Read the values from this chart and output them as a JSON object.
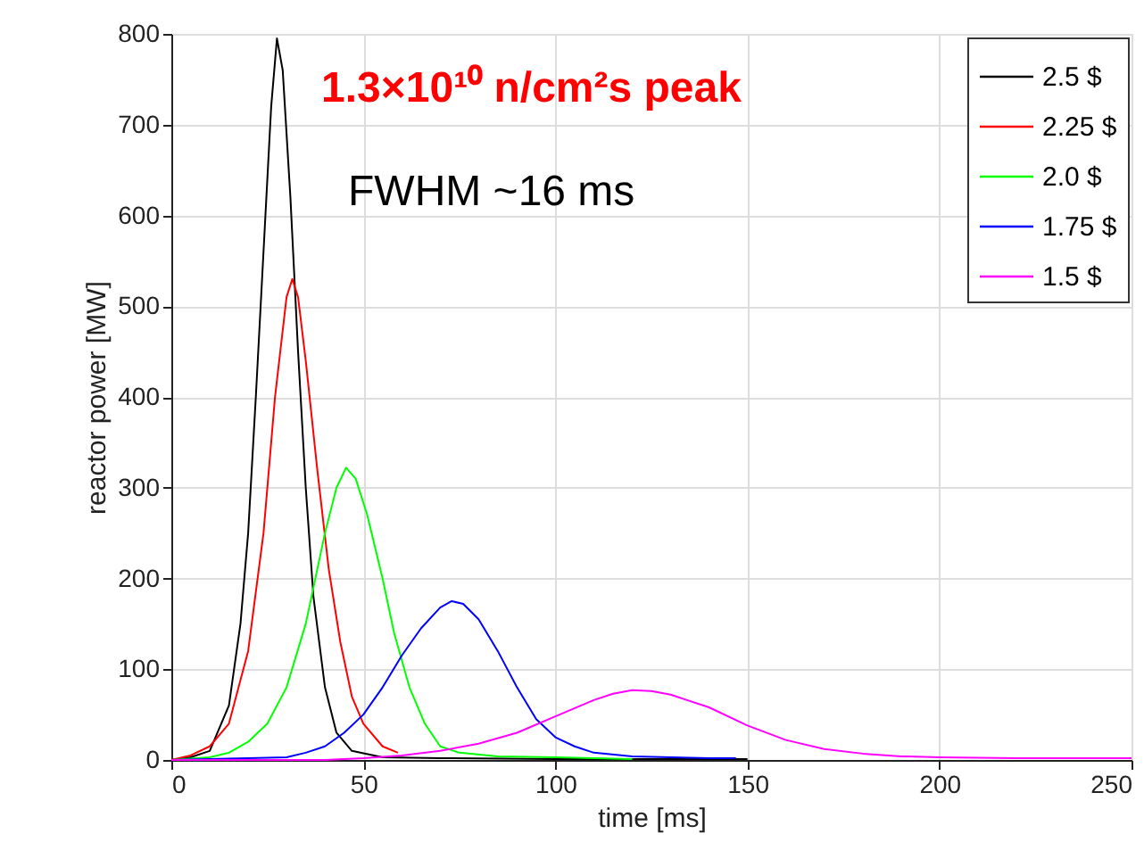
{
  "chart_data": {
    "type": "line",
    "xlabel": "time [ms]",
    "ylabel": "reactor power [MW]",
    "annotations": [
      "1.3×10¹⁰ n/cm²s peak",
      "FWHM ~16 ms"
    ],
    "xlim": [
      0,
      250
    ],
    "ylim": [
      0,
      800
    ],
    "xticks": [
      0,
      50,
      100,
      150,
      200,
      250
    ],
    "yticks": [
      0,
      100,
      200,
      300,
      400,
      500,
      600,
      700,
      800
    ],
    "grid": true,
    "legend": "top right",
    "line_style": "solid",
    "marker": "none",
    "series": [
      {
        "name": "2.5 $",
        "color": "#000000",
        "x": [
          0,
          5,
          10,
          15,
          18,
          20,
          22,
          24,
          26,
          27.5,
          29,
          31,
          33,
          35,
          37,
          40,
          43,
          47,
          55,
          70,
          100,
          150
        ],
        "values": [
          0,
          3,
          10,
          60,
          150,
          250,
          400,
          560,
          720,
          795,
          760,
          620,
          450,
          300,
          180,
          80,
          30,
          10,
          3,
          2,
          1,
          1
        ]
      },
      {
        "name": "2.25 $",
        "color": "#ff0000",
        "x": [
          0,
          5,
          10,
          15,
          20,
          24,
          27,
          30,
          31.5,
          33,
          35,
          38,
          41,
          44,
          47,
          50,
          55,
          59
        ],
        "values": [
          0,
          5,
          15,
          40,
          120,
          250,
          400,
          510,
          530,
          510,
          440,
          320,
          210,
          130,
          70,
          40,
          15,
          8
        ]
      },
      {
        "name": "2.0 $",
        "color": "#00ff00",
        "x": [
          0,
          10,
          15,
          20,
          25,
          30,
          35,
          40,
          43,
          45.5,
          48,
          51,
          55,
          58,
          62,
          66,
          70,
          75,
          85,
          100,
          120
        ],
        "values": [
          0,
          3,
          8,
          20,
          40,
          80,
          150,
          250,
          300,
          322,
          310,
          270,
          200,
          140,
          80,
          40,
          15,
          8,
          4,
          3,
          1
        ]
      },
      {
        "name": "1.75 $",
        "color": "#0000ff",
        "x": [
          0,
          20,
          30,
          35,
          40,
          45,
          50,
          55,
          60,
          65,
          70,
          73,
          76,
          80,
          85,
          90,
          95,
          100,
          105,
          110,
          120,
          130,
          140,
          147
        ],
        "values": [
          0,
          2,
          3,
          8,
          15,
          30,
          50,
          80,
          115,
          145,
          168,
          175,
          172,
          155,
          120,
          80,
          45,
          25,
          15,
          8,
          4,
          3,
          2,
          2
        ]
      },
      {
        "name": "1.5 $",
        "color": "#ff00ff",
        "x": [
          0,
          40,
          50,
          60,
          70,
          80,
          90,
          100,
          110,
          115,
          120,
          125,
          130,
          140,
          150,
          160,
          170,
          180,
          190,
          200,
          220,
          250
        ],
        "values": [
          0,
          0,
          2,
          5,
          10,
          18,
          30,
          48,
          66,
          73,
          77,
          76,
          72,
          58,
          38,
          22,
          12,
          7,
          4,
          3,
          2,
          2
        ]
      }
    ]
  }
}
